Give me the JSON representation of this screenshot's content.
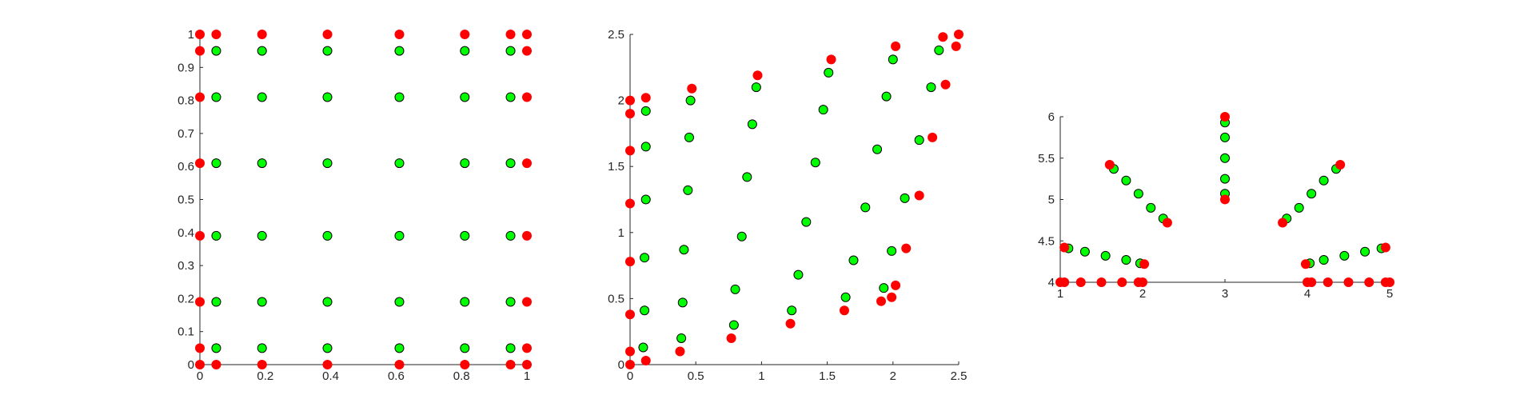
{
  "chart_data": [
    {
      "type": "scatter",
      "title": "",
      "xlabel": "",
      "ylabel": "",
      "xlim": [
        0,
        1
      ],
      "ylim": [
        0,
        1
      ],
      "grid": false,
      "xticks": [
        0,
        0.2,
        0.4,
        0.6,
        0.8,
        1
      ],
      "xtick_labels": [
        "0",
        "0.2",
        "0.4",
        "0.6",
        "0.8",
        "1"
      ],
      "yticks": [
        0,
        0.1,
        0.2,
        0.3,
        0.4,
        0.5,
        0.6,
        0.7,
        0.8,
        0.9,
        1
      ],
      "ytick_labels": [
        "0",
        "0.1",
        "0.2",
        "0.3",
        "0.4",
        "0.5",
        "0.6",
        "0.7",
        "0.8",
        "0.9",
        "1"
      ],
      "series": [
        {
          "color": "#ff0000",
          "marker": "filled-circle",
          "points": [
            [
              0,
              0
            ],
            [
              0,
              0.05
            ],
            [
              0,
              0.19
            ],
            [
              0,
              0.39
            ],
            [
              0,
              0.61
            ],
            [
              0,
              0.81
            ],
            [
              0,
              0.95
            ],
            [
              0,
              1
            ],
            [
              1,
              0
            ],
            [
              1,
              0.05
            ],
            [
              1,
              0.19
            ],
            [
              1,
              0.39
            ],
            [
              1,
              0.61
            ],
            [
              1,
              0.81
            ],
            [
              1,
              0.95
            ],
            [
              1,
              1
            ],
            [
              0.05,
              0
            ],
            [
              0.19,
              0
            ],
            [
              0.39,
              0
            ],
            [
              0.61,
              0
            ],
            [
              0.81,
              0
            ],
            [
              0.95,
              0
            ],
            [
              0.05,
              1
            ],
            [
              0.19,
              1
            ],
            [
              0.39,
              1
            ],
            [
              0.61,
              1
            ],
            [
              0.81,
              1
            ],
            [
              0.95,
              1
            ]
          ]
        },
        {
          "color": "#00ff00",
          "marker": "outlined-circle",
          "points": [
            [
              0.05,
              0.05
            ],
            [
              0.05,
              0.19
            ],
            [
              0.05,
              0.39
            ],
            [
              0.05,
              0.61
            ],
            [
              0.05,
              0.81
            ],
            [
              0.05,
              0.95
            ],
            [
              0.19,
              0.05
            ],
            [
              0.19,
              0.19
            ],
            [
              0.19,
              0.39
            ],
            [
              0.19,
              0.61
            ],
            [
              0.19,
              0.81
            ],
            [
              0.19,
              0.95
            ],
            [
              0.39,
              0.05
            ],
            [
              0.39,
              0.19
            ],
            [
              0.39,
              0.39
            ],
            [
              0.39,
              0.61
            ],
            [
              0.39,
              0.81
            ],
            [
              0.39,
              0.95
            ],
            [
              0.61,
              0.05
            ],
            [
              0.61,
              0.19
            ],
            [
              0.61,
              0.39
            ],
            [
              0.61,
              0.61
            ],
            [
              0.61,
              0.81
            ],
            [
              0.61,
              0.95
            ],
            [
              0.81,
              0.05
            ],
            [
              0.81,
              0.19
            ],
            [
              0.81,
              0.39
            ],
            [
              0.81,
              0.61
            ],
            [
              0.81,
              0.81
            ],
            [
              0.81,
              0.95
            ],
            [
              0.95,
              0.05
            ],
            [
              0.95,
              0.19
            ],
            [
              0.95,
              0.39
            ],
            [
              0.95,
              0.61
            ],
            [
              0.95,
              0.81
            ],
            [
              0.95,
              0.95
            ]
          ]
        }
      ]
    },
    {
      "type": "scatter",
      "title": "",
      "xlabel": "",
      "ylabel": "",
      "xlim": [
        0,
        2.5
      ],
      "ylim": [
        0,
        2.5
      ],
      "grid": false,
      "xticks": [
        0,
        0.5,
        1,
        1.5,
        2,
        2.5
      ],
      "xtick_labels": [
        "0",
        "0.5",
        "1",
        "1.5",
        "2",
        "2.5"
      ],
      "yticks": [
        0,
        0.5,
        1,
        1.5,
        2,
        2.5
      ],
      "ytick_labels": [
        "0",
        "0.5",
        "1",
        "1.5",
        "2",
        "2.5"
      ],
      "series": [
        {
          "color": "#ff0000",
          "marker": "filled-circle",
          "points": [
            [
              0,
              0
            ],
            [
              0,
              0.1
            ],
            [
              0,
              0.38
            ],
            [
              0,
              0.78
            ],
            [
              0,
              1.22
            ],
            [
              0,
              1.62
            ],
            [
              0,
              1.9
            ],
            [
              0,
              2
            ],
            [
              0.12,
              0.03
            ],
            [
              0.12,
              2.02
            ],
            [
              0.38,
              0.1
            ],
            [
              0.47,
              2.09
            ],
            [
              0.77,
              0.2
            ],
            [
              0.97,
              2.19
            ],
            [
              1.22,
              0.31
            ],
            [
              1.53,
              2.31
            ],
            [
              1.63,
              0.41
            ],
            [
              2.02,
              2.41
            ],
            [
              1.91,
              0.48
            ],
            [
              2.38,
              2.48
            ],
            [
              1.99,
              0.51
            ],
            [
              2.02,
              0.6
            ],
            [
              2.1,
              0.88
            ],
            [
              2.2,
              1.28
            ],
            [
              2.3,
              1.72
            ],
            [
              2.4,
              2.12
            ],
            [
              2.48,
              2.41
            ],
            [
              2.5,
              2.5
            ]
          ]
        },
        {
          "color": "#00ff00",
          "marker": "outlined-circle",
          "points": [
            [
              0.1,
              0.13
            ],
            [
              0.11,
              0.41
            ],
            [
              0.11,
              0.81
            ],
            [
              0.12,
              1.25
            ],
            [
              0.12,
              1.65
            ],
            [
              0.12,
              1.92
            ],
            [
              0.39,
              0.2
            ],
            [
              0.4,
              0.47
            ],
            [
              0.41,
              0.87
            ],
            [
              0.44,
              1.32
            ],
            [
              0.45,
              1.72
            ],
            [
              0.46,
              2
            ],
            [
              0.79,
              0.3
            ],
            [
              0.8,
              0.57
            ],
            [
              0.85,
              0.97
            ],
            [
              0.89,
              1.42
            ],
            [
              0.93,
              1.82
            ],
            [
              0.96,
              2.1
            ],
            [
              1.23,
              0.41
            ],
            [
              1.28,
              0.68
            ],
            [
              1.34,
              1.08
            ],
            [
              1.41,
              1.53
            ],
            [
              1.47,
              1.93
            ],
            [
              1.51,
              2.21
            ],
            [
              1.64,
              0.51
            ],
            [
              1.7,
              0.79
            ],
            [
              1.79,
              1.19
            ],
            [
              1.88,
              1.63
            ],
            [
              1.95,
              2.03
            ],
            [
              2,
              2.31
            ],
            [
              1.93,
              0.58
            ],
            [
              1.99,
              0.86
            ],
            [
              2.09,
              1.26
            ],
            [
              2.2,
              1.7
            ],
            [
              2.29,
              2.1
            ],
            [
              2.35,
              2.38
            ]
          ]
        }
      ]
    },
    {
      "type": "scatter",
      "title": "",
      "xlabel": "",
      "ylabel": "",
      "xlim": [
        1,
        5
      ],
      "ylim": [
        4,
        6
      ],
      "grid": false,
      "xticks": [
        1,
        2,
        3,
        4,
        5
      ],
      "xtick_labels": [
        "1",
        "2",
        "3",
        "4",
        "5"
      ],
      "yticks": [
        4,
        4.5,
        5,
        5.5,
        6
      ],
      "ytick_labels": [
        "4",
        "4.5",
        "5",
        "5.5",
        "6"
      ],
      "series": [
        {
          "color": "#ff0000",
          "marker": "filled-circle",
          "points": [
            [
              1,
              4
            ],
            [
              1.05,
              4
            ],
            [
              1.25,
              4
            ],
            [
              1.5,
              4
            ],
            [
              1.75,
              4
            ],
            [
              1.95,
              4
            ],
            [
              2,
              4
            ],
            [
              4,
              4
            ],
            [
              4.05,
              4
            ],
            [
              4.25,
              4
            ],
            [
              4.5,
              4
            ],
            [
              4.75,
              4
            ],
            [
              4.95,
              4
            ],
            [
              5,
              4
            ],
            [
              1.05,
              4.42
            ],
            [
              2.02,
              4.22
            ],
            [
              1.6,
              5.42
            ],
            [
              2.3,
              4.72
            ],
            [
              3,
              5
            ],
            [
              3,
              6
            ],
            [
              3.7,
              4.72
            ],
            [
              4.4,
              5.42
            ],
            [
              3.98,
              4.22
            ],
            [
              4.95,
              4.42
            ]
          ]
        },
        {
          "color": "#00ff00",
          "marker": "outlined-circle",
          "points": [
            [
              1.1,
              4.41
            ],
            [
              1.3,
              4.37
            ],
            [
              1.55,
              4.32
            ],
            [
              1.8,
              4.27
            ],
            [
              1.97,
              4.23
            ],
            [
              1.65,
              5.37
            ],
            [
              1.8,
              5.23
            ],
            [
              1.95,
              5.07
            ],
            [
              2.1,
              4.9
            ],
            [
              2.25,
              4.77
            ],
            [
              3,
              5.07
            ],
            [
              3,
              5.25
            ],
            [
              3,
              5.5
            ],
            [
              3,
              5.75
            ],
            [
              3,
              5.93
            ],
            [
              3.75,
              4.77
            ],
            [
              3.9,
              4.9
            ],
            [
              4.05,
              5.07
            ],
            [
              4.2,
              5.23
            ],
            [
              4.35,
              5.37
            ],
            [
              4.03,
              4.23
            ],
            [
              4.2,
              4.27
            ],
            [
              4.45,
              4.32
            ],
            [
              4.7,
              4.37
            ],
            [
              4.9,
              4.41
            ]
          ]
        }
      ]
    }
  ]
}
